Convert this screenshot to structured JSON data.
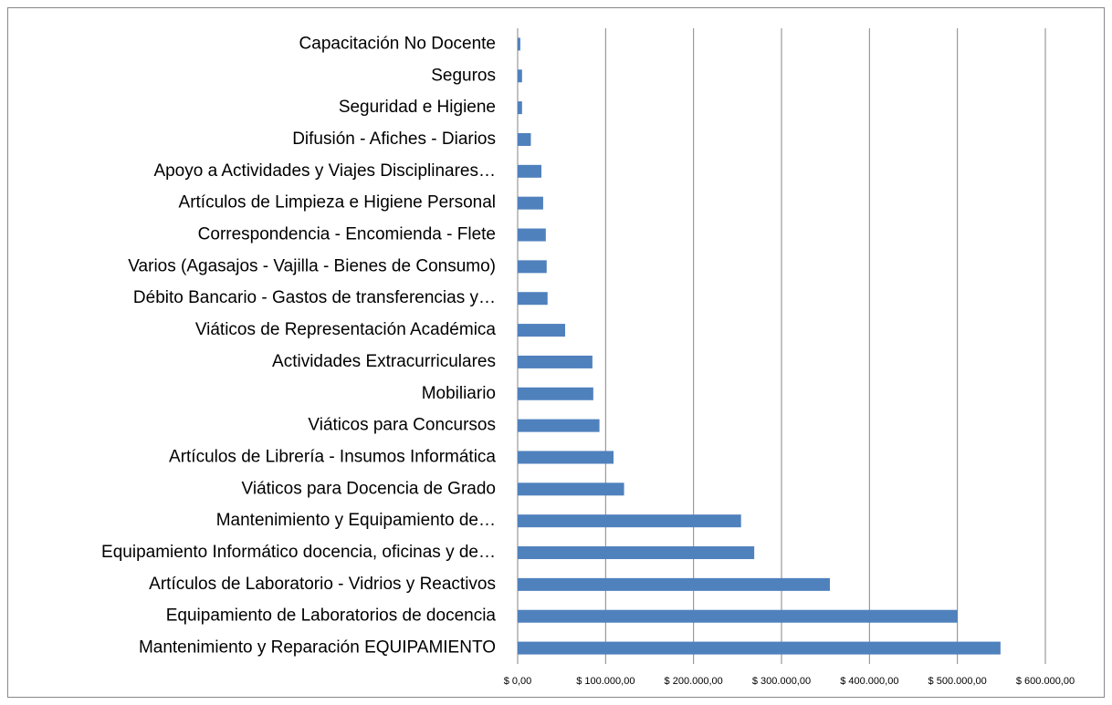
{
  "chart_data": {
    "type": "barh",
    "categories": [
      "Capacitación No Docente",
      "Seguros",
      "Seguridad e Higiene",
      "Difusión - Afiches - Diarios",
      "Apoyo a Actividades y Viajes Disciplinares…",
      "Artículos de Limpieza e Higiene Personal",
      "Correspondencia - Encomienda - Flete",
      "Varios (Agasajos - Vajilla - Bienes de Consumo)",
      "Débito Bancario - Gastos de transferencias y…",
      "Viáticos de Representación Académica",
      "Actividades Extracurriculares",
      "Mobiliario",
      "Viáticos para Concursos",
      "Artículos de Librería - Insumos Informática",
      "Viáticos para Docencia de Grado",
      "Mantenimiento y Equipamiento de…",
      "Equipamiento Informático docencia, oficinas y de…",
      "Artículos de Laboratorio - Vidrios y Reactivos",
      "Equipamiento de Laboratorios de docencia",
      "Mantenimiento y Reparación EQUIPAMIENTO"
    ],
    "values": [
      3000,
      5000,
      5000,
      15000,
      27000,
      29000,
      32000,
      33000,
      34000,
      54000,
      85000,
      86000,
      93000,
      109000,
      121000,
      254000,
      269000,
      355000,
      500000,
      549000
    ],
    "color": "#4f81bd",
    "xlim": [
      0,
      600000
    ],
    "xticks": [
      {
        "value": 0,
        "label": "$ 0,00"
      },
      {
        "value": 100000,
        "label": "$ 100.000,00"
      },
      {
        "value": 200000,
        "label": "$ 200.000,00"
      },
      {
        "value": 300000,
        "label": "$ 300.000,00"
      },
      {
        "value": 400000,
        "label": "$ 400.000,00"
      },
      {
        "value": 500000,
        "label": "$ 500.000,00"
      },
      {
        "value": 600000,
        "label": "$ 600.000,00"
      }
    ],
    "grid": true
  }
}
